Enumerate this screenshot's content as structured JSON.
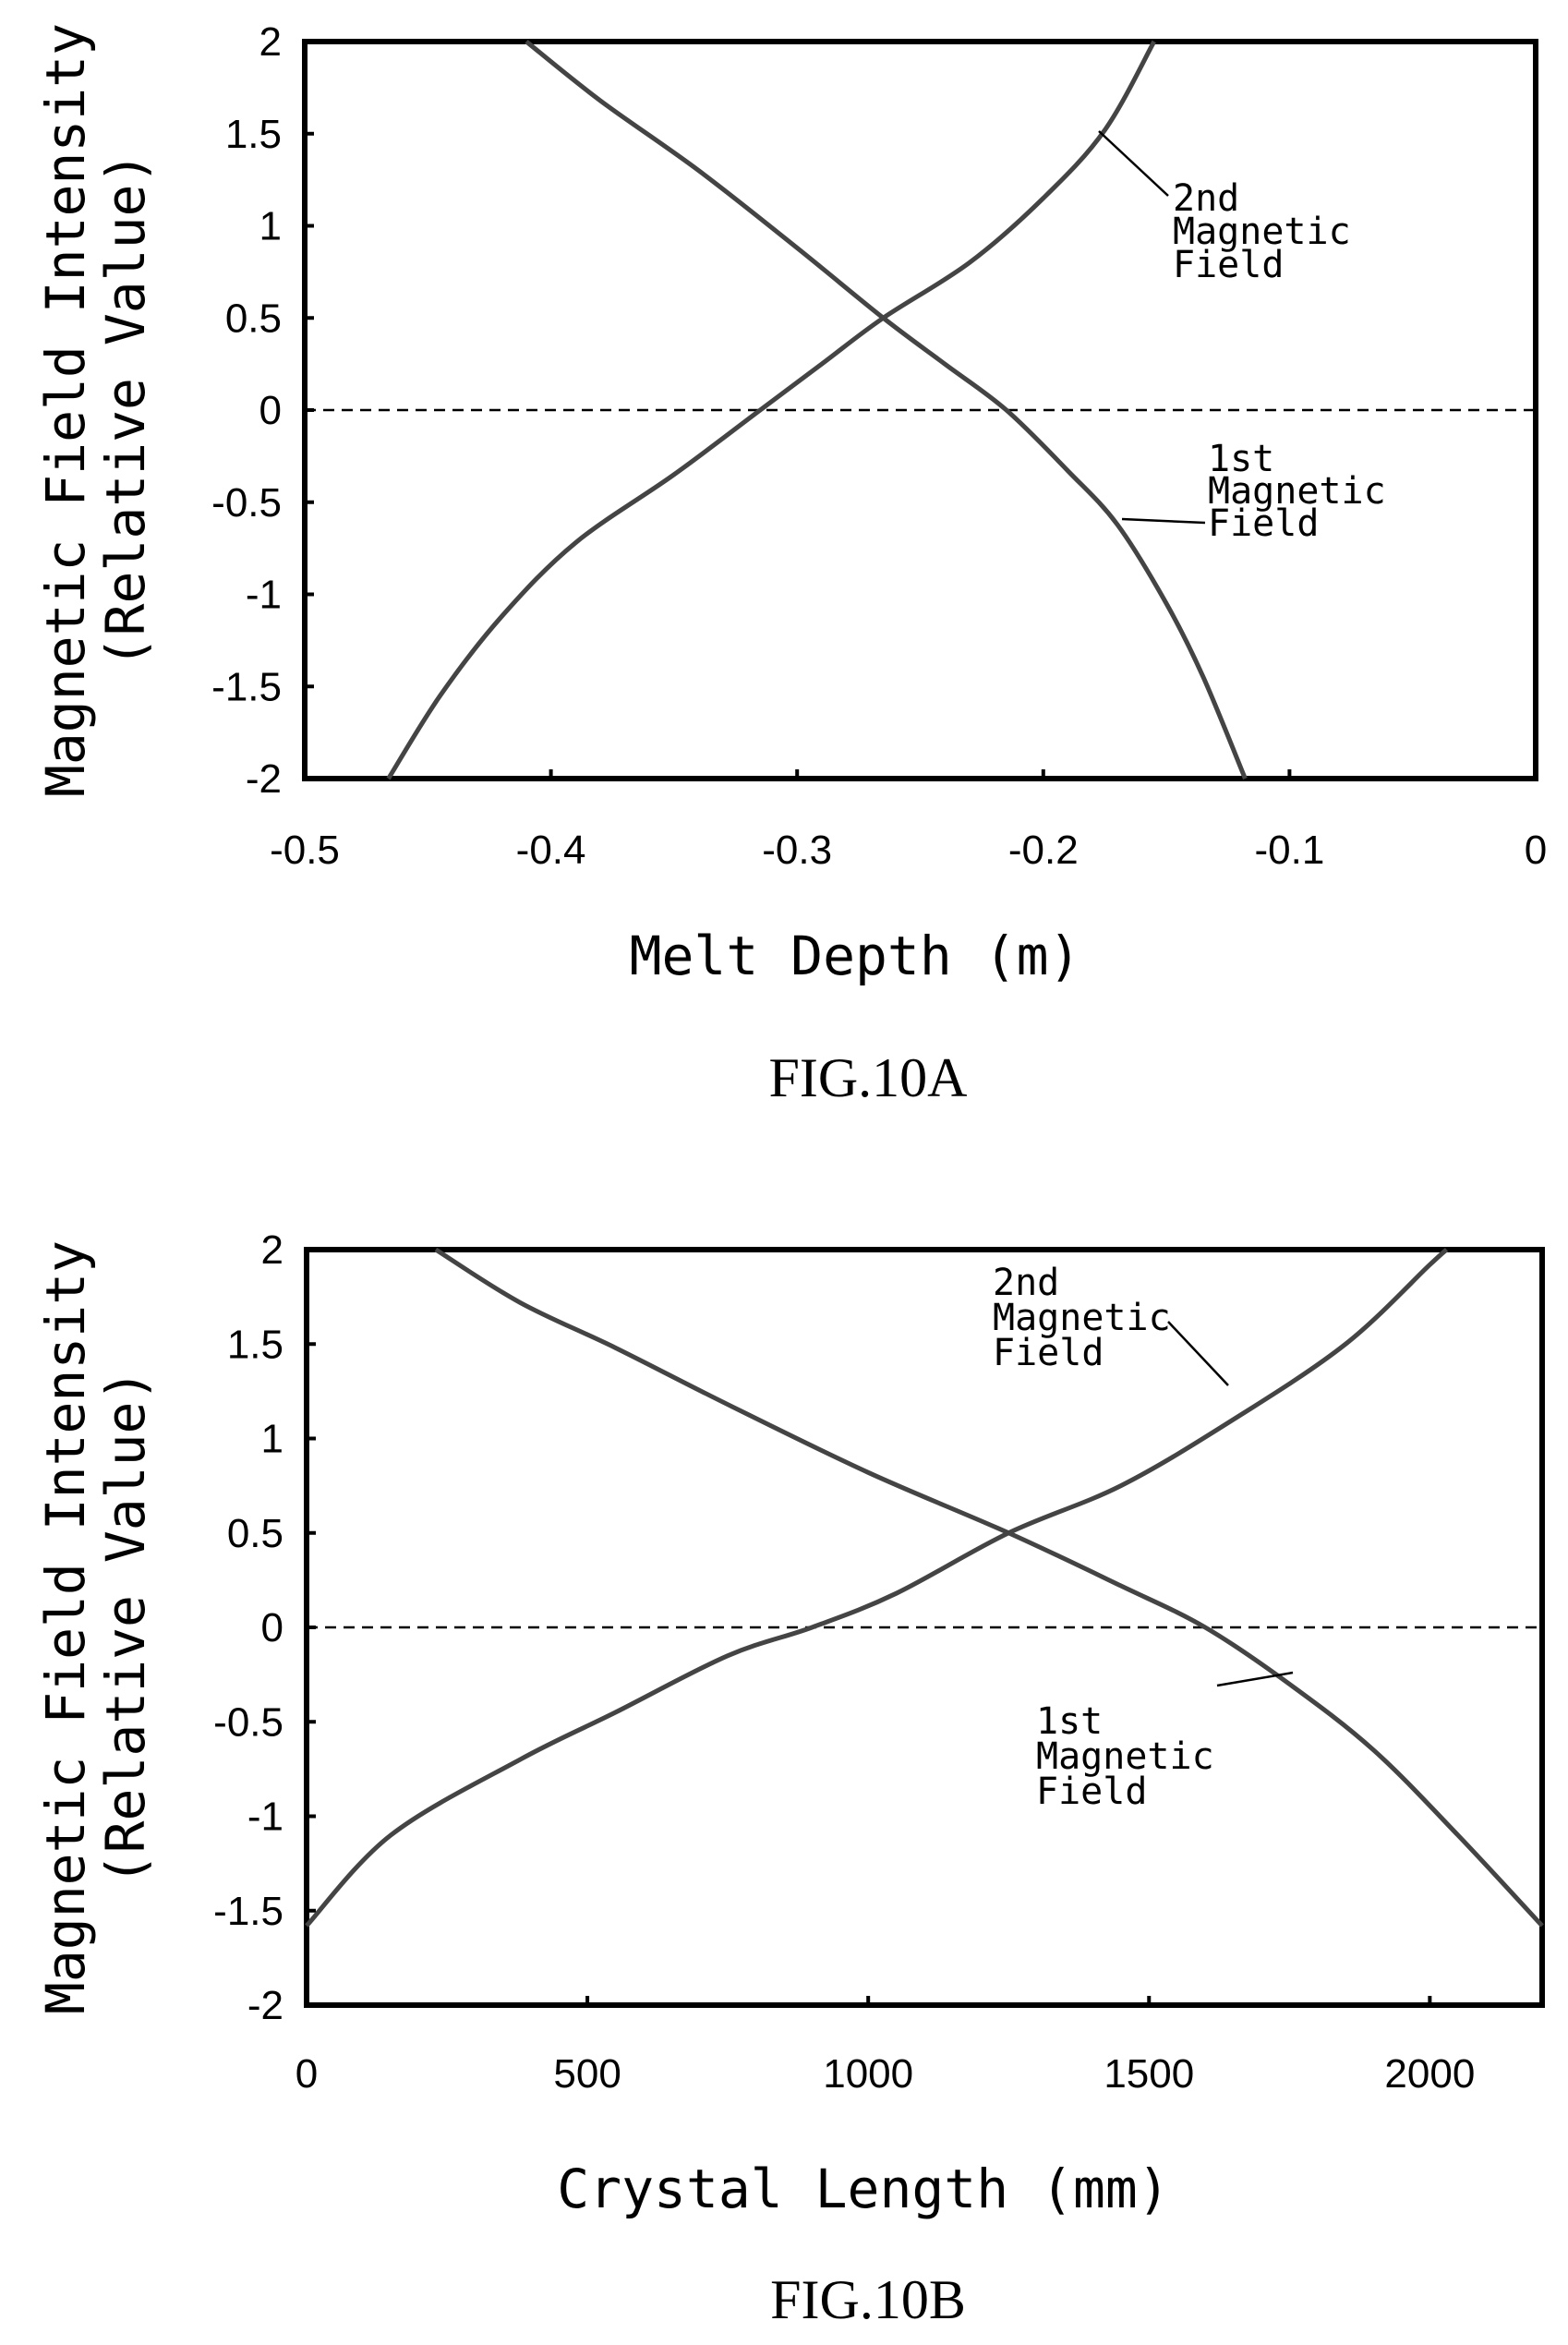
{
  "chart_data": [
    {
      "type": "line",
      "caption": "FIG.10A",
      "xlabel": "Melt Depth (m)",
      "ylabel_line1": "Magnetic Field Intensity",
      "ylabel_line2": "(Relative Value)",
      "xlim": [
        -0.5,
        0
      ],
      "ylim": [
        -2,
        2
      ],
      "xticks": [
        "-0.5",
        "-0.4",
        "-0.3",
        "-0.2",
        "-0.1",
        "0"
      ],
      "yticks": [
        "2",
        "1.5",
        "1",
        "0.5",
        "0",
        "-0.5",
        "-1",
        "-1.5",
        "-2"
      ],
      "zero_line": "dashed",
      "series": [
        {
          "name": "1st Magnetic Field",
          "label_lines": [
            "1st",
            "Magnetic",
            "Field"
          ],
          "x": [
            -0.41,
            -0.38,
            -0.34,
            -0.3,
            -0.265,
            -0.24,
            -0.215,
            -0.19,
            -0.17,
            -0.15,
            -0.135,
            -0.118
          ],
          "y": [
            2.0,
            1.68,
            1.3,
            0.88,
            0.5,
            0.25,
            0.0,
            -0.33,
            -0.62,
            -1.05,
            -1.45,
            -2.0
          ]
        },
        {
          "name": "2nd Magnetic Field",
          "label_lines": [
            "2nd",
            "Magnetic",
            "Field"
          ],
          "x": [
            -0.466,
            -0.445,
            -0.42,
            -0.39,
            -0.35,
            -0.315,
            -0.29,
            -0.265,
            -0.23,
            -0.2,
            -0.175,
            -0.155
          ],
          "y": [
            -2.0,
            -1.55,
            -1.12,
            -0.72,
            -0.35,
            0.0,
            0.25,
            0.5,
            0.8,
            1.15,
            1.52,
            2.0
          ]
        }
      ]
    },
    {
      "type": "line",
      "caption": "FIG.10B",
      "xlabel": "Crystal Length (mm)",
      "ylabel_line1": "Magnetic Field Intensity",
      "ylabel_line2": "(Relative Value)",
      "xlim": [
        0,
        2200
      ],
      "ylim": [
        -2,
        2
      ],
      "xticks": [
        "0",
        "500",
        "1000",
        "1500",
        "2000"
      ],
      "yticks": [
        "2",
        "1.5",
        "1",
        "0.5",
        "0",
        "-0.5",
        "-1",
        "-1.5",
        "-2"
      ],
      "zero_line": "dashed",
      "series": [
        {
          "name": "1st Magnetic Field",
          "label_lines": [
            "1st",
            "Magnetic",
            "Field"
          ],
          "x": [
            230,
            380,
            550,
            750,
            1000,
            1250,
            1450,
            1600,
            1750,
            1900,
            2050,
            2200
          ],
          "y": [
            2.0,
            1.72,
            1.48,
            1.18,
            0.82,
            0.5,
            0.22,
            0.0,
            -0.3,
            -0.65,
            -1.1,
            -1.58
          ]
        },
        {
          "name": "2nd Magnetic Field",
          "label_lines": [
            "2nd",
            "Magnetic",
            "Field"
          ],
          "x": [
            0,
            150,
            380,
            550,
            750,
            900,
            1050,
            1250,
            1450,
            1650,
            1850,
            2000,
            2030
          ],
          "y": [
            -1.58,
            -1.1,
            -0.7,
            -0.45,
            -0.15,
            0.0,
            0.18,
            0.5,
            0.75,
            1.1,
            1.5,
            1.92,
            2.0
          ]
        }
      ]
    }
  ]
}
